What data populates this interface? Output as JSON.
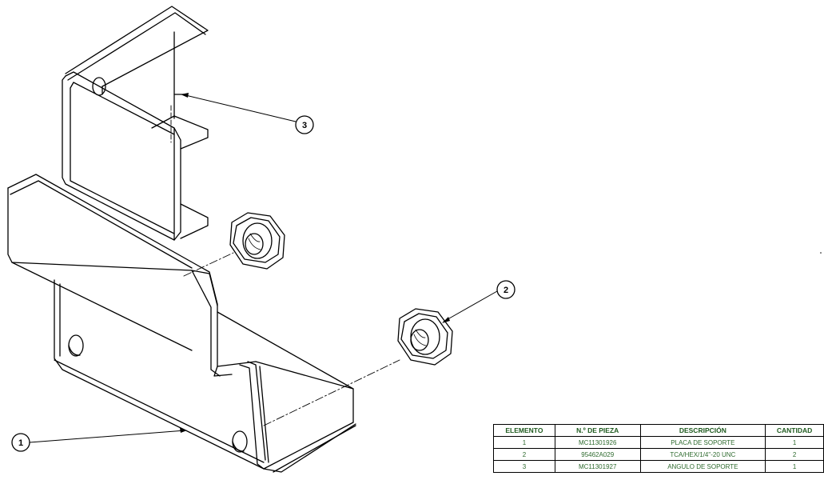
{
  "balloons": [
    {
      "label": "1"
    },
    {
      "label": "2"
    },
    {
      "label": "3"
    }
  ],
  "bom": {
    "headers": [
      "ELEMENTO",
      "N.º DE PIEZA",
      "DESCRIPCIÓN",
      "CANTIDAD"
    ],
    "rows": [
      [
        "1",
        "MC11301926",
        "PLACA DE SOPORTE",
        "1"
      ],
      [
        "2",
        "95462A029",
        "TCA/HEX/1/4\"-20 UNC",
        "2"
      ],
      [
        "3",
        "MC11301927",
        "ANGULO DE SOPORTE",
        "1"
      ]
    ]
  },
  "colors": {
    "line": "#000000",
    "table_text": "#2e6a2e"
  }
}
